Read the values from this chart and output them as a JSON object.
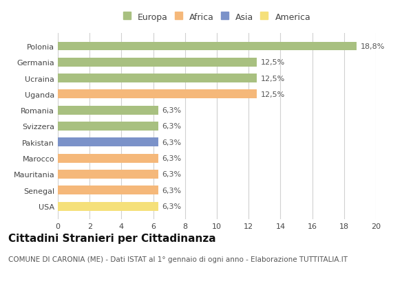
{
  "categories": [
    "Polonia",
    "Germania",
    "Ucraina",
    "Uganda",
    "Romania",
    "Svizzera",
    "Pakistan",
    "Marocco",
    "Mauritania",
    "Senegal",
    "USA"
  ],
  "values": [
    18.8,
    12.5,
    12.5,
    12.5,
    6.3,
    6.3,
    6.3,
    6.3,
    6.3,
    6.3,
    6.3
  ],
  "labels": [
    "18,8%",
    "12,5%",
    "12,5%",
    "12,5%",
    "6,3%",
    "6,3%",
    "6,3%",
    "6,3%",
    "6,3%",
    "6,3%",
    "6,3%"
  ],
  "colors": [
    "#a8c080",
    "#a8c080",
    "#a8c080",
    "#f5b87a",
    "#a8c080",
    "#a8c080",
    "#7b92c9",
    "#f5b87a",
    "#f5b87a",
    "#f5b87a",
    "#f5e07a"
  ],
  "legend": [
    {
      "label": "Europa",
      "color": "#a8c080"
    },
    {
      "label": "Africa",
      "color": "#f5b87a"
    },
    {
      "label": "Asia",
      "color": "#7b92c9"
    },
    {
      "label": "America",
      "color": "#f5e07a"
    }
  ],
  "xlim": [
    0,
    20
  ],
  "xticks": [
    0,
    2,
    4,
    6,
    8,
    10,
    12,
    14,
    16,
    18,
    20
  ],
  "title": "Cittadini Stranieri per Cittadinanza",
  "subtitle": "COMUNE DI CARONIA (ME) - Dati ISTAT al 1° gennaio di ogni anno - Elaborazione TUTTITALIA.IT",
  "background_color": "#ffffff",
  "grid_color": "#d0d0d0",
  "bar_height": 0.55,
  "title_fontsize": 11,
  "subtitle_fontsize": 7.5,
  "label_fontsize": 8,
  "tick_fontsize": 8,
  "legend_fontsize": 9
}
